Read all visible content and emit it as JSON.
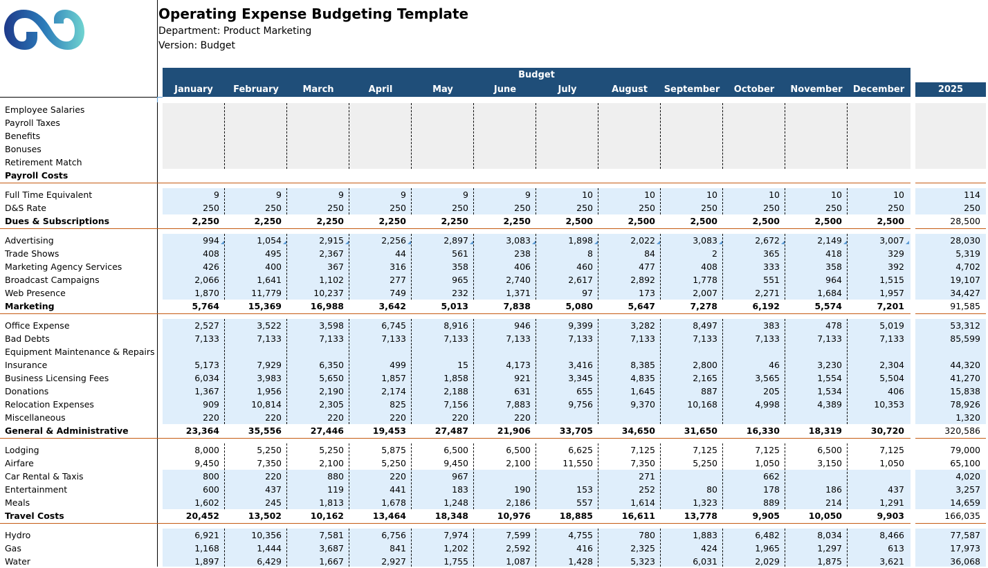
{
  "header": {
    "title": "Operating Expense Budgeting Template",
    "department": "Department: Product Marketing",
    "version": "Version: Budget",
    "band_label": "Budget",
    "months": [
      "January",
      "February",
      "March",
      "April",
      "May",
      "June",
      "July",
      "August",
      "September",
      "October",
      "November",
      "December"
    ],
    "year_label": "2025"
  },
  "colors": {
    "header_bg": "#1f4e79",
    "input_blue": "#dfeefb",
    "input_gray": "#efefef",
    "subtotal_line": "#c55a11"
  },
  "sections": [
    {
      "fill": "gray",
      "rows": [
        {
          "label": "Employee Salaries",
          "bold": false,
          "values": [
            "",
            "",
            "",
            "",
            "",
            "",
            "",
            "",
            "",
            "",
            "",
            ""
          ],
          "total": ""
        },
        {
          "label": "Payroll Taxes",
          "bold": false,
          "values": [
            "",
            "",
            "",
            "",
            "",
            "",
            "",
            "",
            "",
            "",
            "",
            ""
          ],
          "total": ""
        },
        {
          "label": "Benefits",
          "bold": false,
          "values": [
            "",
            "",
            "",
            "",
            "",
            "",
            "",
            "",
            "",
            "",
            "",
            ""
          ],
          "total": ""
        },
        {
          "label": "Bonuses",
          "bold": false,
          "values": [
            "",
            "",
            "",
            "",
            "",
            "",
            "",
            "",
            "",
            "",
            "",
            ""
          ],
          "total": ""
        },
        {
          "label": "Retirement Match",
          "bold": false,
          "values": [
            "",
            "",
            "",
            "",
            "",
            "",
            "",
            "",
            "",
            "",
            "",
            ""
          ],
          "total": ""
        },
        {
          "label": "Payroll Costs",
          "bold": true,
          "values": [
            "",
            "",
            "",
            "",
            "",
            "",
            "",
            "",
            "",
            "",
            "",
            ""
          ],
          "total": ""
        }
      ]
    },
    {
      "fill": "blue",
      "rows": [
        {
          "label": "Full Time Equivalent",
          "bold": false,
          "values": [
            "9",
            "9",
            "9",
            "9",
            "9",
            "9",
            "10",
            "10",
            "10",
            "10",
            "10",
            "10"
          ],
          "total": "114"
        },
        {
          "label": "D&S Rate",
          "bold": false,
          "values": [
            "250",
            "250",
            "250",
            "250",
            "250",
            "250",
            "250",
            "250",
            "250",
            "250",
            "250",
            "250"
          ],
          "total": "250"
        },
        {
          "label": "Dues & Subscriptions",
          "bold": true,
          "values": [
            "2,250",
            "2,250",
            "2,250",
            "2,250",
            "2,250",
            "2,250",
            "2,500",
            "2,500",
            "2,500",
            "2,500",
            "2,500",
            "2,500"
          ],
          "total": "28,500"
        }
      ]
    },
    {
      "fill": "blue",
      "rows": [
        {
          "label": "Advertising",
          "bold": false,
          "note": true,
          "values": [
            "994",
            "1,054",
            "2,915",
            "2,256",
            "2,897",
            "3,083",
            "1,898",
            "2,022",
            "3,083",
            "2,672",
            "2,149",
            "3,007"
          ],
          "total": "28,030"
        },
        {
          "label": "Trade Shows",
          "bold": false,
          "values": [
            "408",
            "495",
            "2,367",
            "44",
            "561",
            "238",
            "8",
            "84",
            "2",
            "365",
            "418",
            "329"
          ],
          "total": "5,319"
        },
        {
          "label": "Marketing Agency Services",
          "bold": false,
          "values": [
            "426",
            "400",
            "367",
            "316",
            "358",
            "406",
            "460",
            "477",
            "408",
            "333",
            "358",
            "392"
          ],
          "total": "4,702"
        },
        {
          "label": "Broadcast Campaigns",
          "bold": false,
          "values": [
            "2,066",
            "1,641",
            "1,102",
            "277",
            "965",
            "2,740",
            "2,617",
            "2,892",
            "1,778",
            "551",
            "964",
            "1,515"
          ],
          "total": "19,107"
        },
        {
          "label": "Web Presence",
          "bold": false,
          "values": [
            "1,870",
            "11,779",
            "10,237",
            "749",
            "232",
            "1,371",
            "97",
            "173",
            "2,007",
            "2,271",
            "1,684",
            "1,957"
          ],
          "total": "34,427"
        },
        {
          "label": "Marketing",
          "bold": true,
          "values": [
            "5,764",
            "15,369",
            "16,988",
            "3,642",
            "5,013",
            "7,838",
            "5,080",
            "5,647",
            "7,278",
            "6,192",
            "5,574",
            "7,201"
          ],
          "total": "91,585"
        }
      ]
    },
    {
      "fill": "blue",
      "rows": [
        {
          "label": "Office Expense",
          "bold": false,
          "values": [
            "2,527",
            "3,522",
            "3,598",
            "6,745",
            "8,916",
            "946",
            "9,399",
            "3,282",
            "8,497",
            "383",
            "478",
            "5,019"
          ],
          "total": "53,312"
        },
        {
          "label": "Bad Debts",
          "bold": false,
          "values": [
            "7,133",
            "7,133",
            "7,133",
            "7,133",
            "7,133",
            "7,133",
            "7,133",
            "7,133",
            "7,133",
            "7,133",
            "7,133",
            "7,133"
          ],
          "total": "85,599"
        },
        {
          "label": "Equipment Maintenance & Repairs",
          "bold": false,
          "values": [
            "",
            "",
            "",
            "",
            "",
            "",
            "",
            "",
            "",
            "",
            "",
            ""
          ],
          "total": ""
        },
        {
          "label": "Insurance",
          "bold": false,
          "values": [
            "5,173",
            "7,929",
            "6,350",
            "499",
            "15",
            "4,173",
            "3,416",
            "8,385",
            "2,800",
            "46",
            "3,230",
            "2,304"
          ],
          "total": "44,320"
        },
        {
          "label": "Business Licensing Fees",
          "bold": false,
          "values": [
            "6,034",
            "3,983",
            "5,650",
            "1,857",
            "1,858",
            "921",
            "3,345",
            "4,835",
            "2,165",
            "3,565",
            "1,554",
            "5,504"
          ],
          "total": "41,270"
        },
        {
          "label": "Donations",
          "bold": false,
          "values": [
            "1,367",
            "1,956",
            "2,190",
            "2,174",
            "2,188",
            "631",
            "655",
            "1,645",
            "887",
            "205",
            "1,534",
            "406"
          ],
          "total": "15,838"
        },
        {
          "label": "Relocation Expenses",
          "bold": false,
          "values": [
            "909",
            "10,814",
            "2,305",
            "825",
            "7,156",
            "7,883",
            "9,756",
            "9,370",
            "10,168",
            "4,998",
            "4,389",
            "10,353"
          ],
          "total": "78,926"
        },
        {
          "label": "Miscellaneous",
          "bold": false,
          "values": [
            "220",
            "220",
            "220",
            "220",
            "220",
            "220",
            "",
            "",
            "",
            "",
            "",
            ""
          ],
          "total": "1,320"
        },
        {
          "label": "General & Administrative",
          "bold": true,
          "values": [
            "23,364",
            "35,556",
            "27,446",
            "19,453",
            "27,487",
            "21,906",
            "33,705",
            "34,650",
            "31,650",
            "16,330",
            "18,319",
            "30,720"
          ],
          "total": "320,586"
        }
      ]
    },
    {
      "fill": "mixed",
      "rows": [
        {
          "label": "Lodging",
          "bold": false,
          "fill": "white",
          "values": [
            "8,000",
            "5,250",
            "5,250",
            "5,875",
            "6,500",
            "6,500",
            "6,625",
            "7,125",
            "7,125",
            "7,125",
            "6,500",
            "7,125"
          ],
          "total": "79,000"
        },
        {
          "label": "Airfare",
          "bold": false,
          "fill": "white",
          "values": [
            "9,450",
            "7,350",
            "2,100",
            "5,250",
            "9,450",
            "2,100",
            "11,550",
            "7,350",
            "5,250",
            "1,050",
            "3,150",
            "1,050"
          ],
          "total": "65,100"
        },
        {
          "label": "Car Rental & Taxis",
          "bold": false,
          "fill": "blue",
          "values": [
            "800",
            "220",
            "880",
            "220",
            "967",
            "",
            "",
            "271",
            "",
            "662",
            "",
            ""
          ],
          "total": "4,020"
        },
        {
          "label": "Entertainment",
          "bold": false,
          "fill": "blue",
          "values": [
            "600",
            "437",
            "119",
            "441",
            "183",
            "190",
            "153",
            "252",
            "80",
            "178",
            "186",
            "437"
          ],
          "total": "3,257"
        },
        {
          "label": "Meals",
          "bold": false,
          "fill": "blue",
          "values": [
            "1,602",
            "245",
            "1,813",
            "1,678",
            "1,248",
            "2,186",
            "557",
            "1,614",
            "1,323",
            "889",
            "214",
            "1,291"
          ],
          "total": "14,659"
        },
        {
          "label": "Travel Costs",
          "bold": true,
          "values": [
            "20,452",
            "13,502",
            "10,162",
            "13,464",
            "18,348",
            "10,976",
            "18,885",
            "16,611",
            "13,778",
            "9,905",
            "10,050",
            "9,903"
          ],
          "total": "166,035"
        }
      ]
    },
    {
      "fill": "blue",
      "rows": [
        {
          "label": "Hydro",
          "bold": false,
          "values": [
            "6,921",
            "10,356",
            "7,581",
            "6,756",
            "7,974",
            "7,599",
            "4,755",
            "780",
            "1,883",
            "6,482",
            "8,034",
            "8,466"
          ],
          "total": "77,587"
        },
        {
          "label": "Gas",
          "bold": false,
          "values": [
            "1,168",
            "1,444",
            "3,687",
            "841",
            "1,202",
            "2,592",
            "416",
            "2,325",
            "424",
            "1,965",
            "1,297",
            "613"
          ],
          "total": "17,973"
        },
        {
          "label": "Water",
          "bold": false,
          "values": [
            "1,897",
            "6,429",
            "1,667",
            "2,927",
            "1,755",
            "1,087",
            "1,428",
            "5,323",
            "6,031",
            "2,029",
            "1,875",
            "3,621"
          ],
          "total": "36,068"
        }
      ]
    }
  ]
}
